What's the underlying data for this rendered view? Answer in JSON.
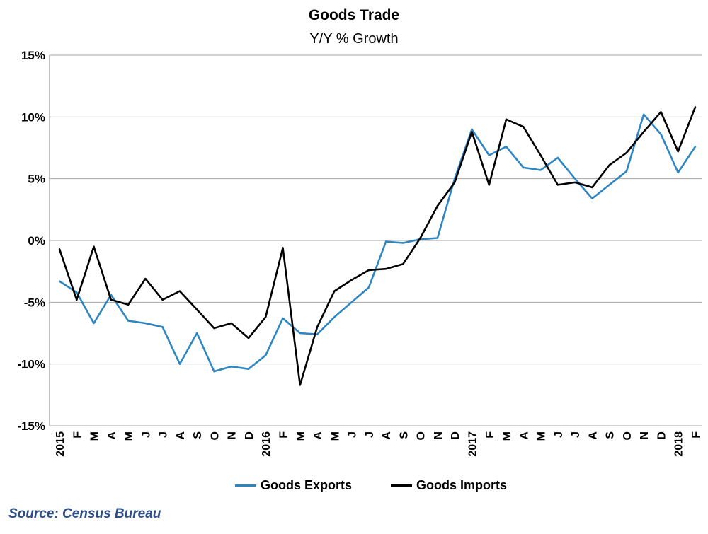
{
  "chart_data": {
    "type": "line",
    "title": "Goods Trade",
    "subtitle": "Y/Y % Growth",
    "source": "Source: Census Bureau",
    "ylim": [
      -15,
      15
    ],
    "yticks": [
      "15%",
      "10%",
      "5%",
      "0%",
      "-5%",
      "-10%",
      "-15%"
    ],
    "ytick_values": [
      15,
      10,
      5,
      0,
      -5,
      -10,
      -15
    ],
    "grid": true,
    "legend_position": "bottom",
    "categories": [
      "2015",
      "F",
      "M",
      "A",
      "M",
      "J",
      "J",
      "A",
      "S",
      "O",
      "N",
      "D",
      "2016",
      "F",
      "M",
      "A",
      "M",
      "J",
      "J",
      "A",
      "S",
      "O",
      "N",
      "D",
      "2017",
      "F",
      "M",
      "A",
      "M",
      "J",
      "J",
      "A",
      "S",
      "O",
      "N",
      "D",
      "2018",
      "F"
    ],
    "series": [
      {
        "name": "Goods Exports",
        "color": "#2e86c1",
        "values": [
          -3.3,
          -4.2,
          -6.7,
          -4.4,
          -6.5,
          -6.7,
          -7.0,
          -10.0,
          -7.5,
          -10.6,
          -10.2,
          -10.4,
          -9.3,
          -6.3,
          -7.5,
          -7.6,
          -6.2,
          -5.0,
          -3.8,
          -0.1,
          -0.2,
          0.1,
          0.2,
          5.0,
          9.0,
          6.9,
          7.6,
          5.9,
          5.7,
          6.7,
          5.0,
          3.4,
          4.5,
          5.6,
          10.2,
          8.6,
          5.5,
          7.6
        ]
      },
      {
        "name": "Goods Imports",
        "color": "#000000",
        "values": [
          -0.7,
          -4.8,
          -0.5,
          -4.8,
          -5.2,
          -3.1,
          -4.8,
          -4.1,
          -5.6,
          -7.1,
          -6.7,
          -7.9,
          -6.2,
          -0.6,
          -11.7,
          -7.0,
          -4.1,
          -3.2,
          -2.4,
          -2.3,
          -1.9,
          0.2,
          2.8,
          4.7,
          8.8,
          4.5,
          9.8,
          9.2,
          6.9,
          4.5,
          4.7,
          4.3,
          6.1,
          7.1,
          8.8,
          10.4,
          7.2,
          10.8
        ]
      }
    ]
  }
}
